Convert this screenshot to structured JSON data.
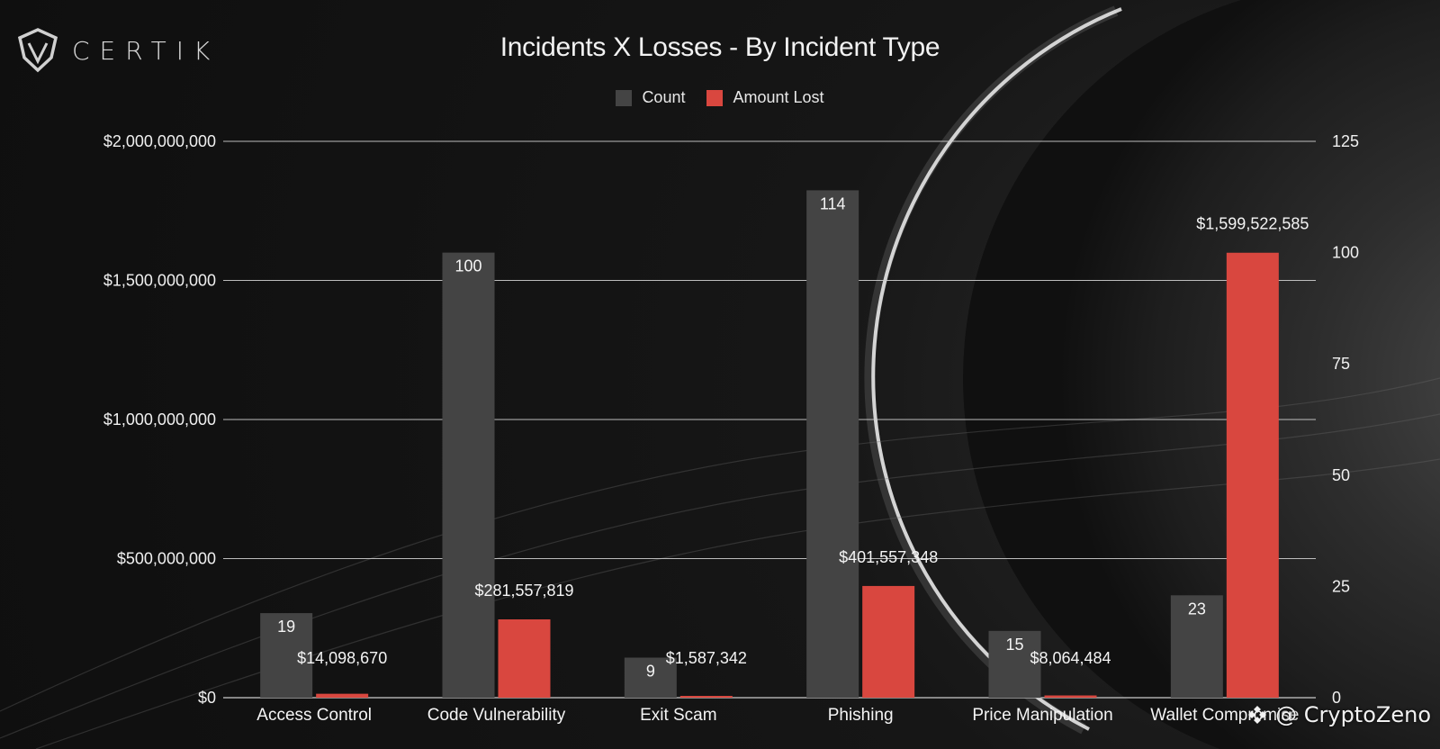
{
  "brand": {
    "logo_text": "CERTIK",
    "watermark_text": "@ CryptoZeno"
  },
  "chart_data": {
    "type": "bar",
    "title": "Incidents X Losses - By Incident Type",
    "categories": [
      "Access Control",
      "Code Vulnerability",
      "Exit Scam",
      "Phishing",
      "Price Manipulation",
      "Wallet Compromise"
    ],
    "series": [
      {
        "name": "Count",
        "axis": "right",
        "color": "#444444",
        "values": [
          19,
          100,
          9,
          114,
          15,
          23
        ],
        "labels": [
          "19",
          "100",
          "9",
          "114",
          "15",
          "23"
        ]
      },
      {
        "name": "Amount Lost",
        "axis": "left",
        "color": "#d9473f",
        "values": [
          14098670,
          281557819,
          1587342,
          401557348,
          8064484,
          1599522585
        ],
        "labels": [
          "$14,098,670",
          "$281,557,819",
          "$1,587,342",
          "$401,557,348",
          "$8,064,484",
          "$1,599,522,585"
        ]
      }
    ],
    "left_axis": {
      "ylim": [
        0,
        2000000000
      ],
      "ticks": [
        0,
        500000000,
        1000000000,
        1500000000,
        2000000000
      ],
      "tick_labels": [
        "$0",
        "$500,000,000",
        "$1,000,000,000",
        "$1,500,000,000",
        "$2,000,000,000"
      ]
    },
    "right_axis": {
      "ylim": [
        0,
        125
      ],
      "ticks": [
        0,
        25,
        50,
        75,
        100,
        125
      ],
      "tick_labels": [
        "0",
        "25",
        "50",
        "75",
        "100",
        "125"
      ]
    },
    "grid": true,
    "legend_position": "top-center"
  }
}
